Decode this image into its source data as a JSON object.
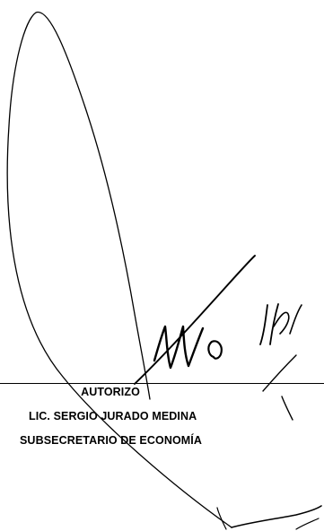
{
  "signature_block": {
    "caption": "AUTORIZO",
    "name": "LIC. SERGIO JURADO MEDINA",
    "title": "SUBSECRETARIO DE ECONOMÍA"
  },
  "colors": {
    "ink": "#000000",
    "paper": "#ffffff"
  }
}
